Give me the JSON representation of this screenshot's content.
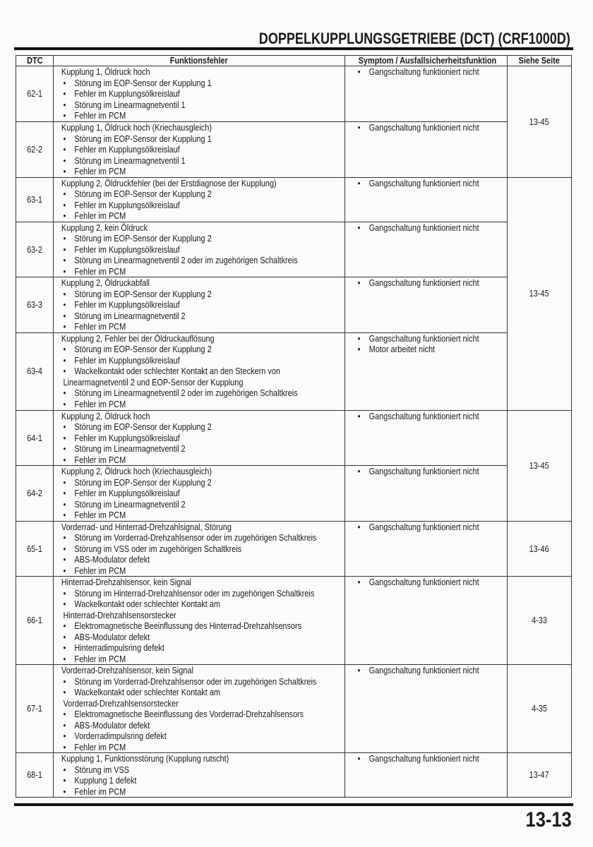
{
  "header": {
    "title": "DOPPELKUPPLUNGSGETRIEBE (DCT) (CRF1000D)"
  },
  "table": {
    "columns": [
      "DTC",
      "Funktionsfehler",
      "Symptom / Ausfallsicherheitsfunktion",
      "Siehe Seite"
    ],
    "rows": [
      {
        "dtc": "62-1",
        "title": "Kupplung 1, Öldruck hoch",
        "causes": [
          "Störung im EOP-Sensor der Kupplung 1",
          "Fehler im Kupplungsölkreislauf",
          "Störung im Linearmagnetventil 1",
          "Fehler im PCM"
        ],
        "symptoms": [
          "Gangschaltung funktioniert nicht"
        ],
        "page": "13-45",
        "page_span": 2
      },
      {
        "dtc": "62-2",
        "title": "Kupplung 1, Öldruck hoch (Kriechausgleich)",
        "causes": [
          "Störung im EOP-Sensor der Kupplung 1",
          "Fehler im Kupplungsölkreislauf",
          "Störung im Linearmagnetventil 1",
          "Fehler im PCM"
        ],
        "symptoms": [
          "Gangschaltung funktioniert nicht"
        ]
      },
      {
        "dtc": "63-1",
        "title": "Kupplung 2, Öldruckfehler (bei der Erstdiagnose der Kupplung)",
        "causes": [
          "Störung im EOP-Sensor der Kupplung 2",
          "Fehler im Kupplungsölkreislauf",
          "Fehler im PCM"
        ],
        "symptoms": [
          "Gangschaltung funktioniert nicht"
        ],
        "page": "13-45",
        "page_span": 4
      },
      {
        "dtc": "63-2",
        "title": "Kupplung 2, kein Öldruck",
        "causes": [
          "Störung im EOP-Sensor der Kupplung 2",
          "Fehler im Kupplungsölkreislauf",
          "Störung im Linearmagnetventil 2 oder im zugehörigen Schaltkreis",
          "Fehler im PCM"
        ],
        "symptoms": [
          "Gangschaltung funktioniert nicht"
        ]
      },
      {
        "dtc": "63-3",
        "title": "Kupplung 2, Öldruckabfall",
        "causes": [
          "Störung im EOP-Sensor der Kupplung 2",
          "Fehler im Kupplungsölkreislauf",
          "Störung im Linearmagnetventil 2",
          "Fehler im PCM"
        ],
        "symptoms": [
          "Gangschaltung funktioniert nicht"
        ]
      },
      {
        "dtc": "63-4",
        "title": "Kupplung 2, Fehler bei der Öldruckauflösung",
        "causes": [
          "Störung im EOP-Sensor der Kupplung 2",
          "Fehler im Kupplungsölkreislauf",
          "Wackelkontakt oder schlechter Kontakt an den Steckern von\nLinearmagnetventil 2 und EOP-Sensor der Kupplung",
          "Störung im Linearmagnetventil 2 oder im zugehörigen Schaltkreis",
          "Fehler im PCM"
        ],
        "symptoms": [
          "Gangschaltung funktioniert nicht",
          "Motor arbeitet nicht"
        ]
      },
      {
        "dtc": "64-1",
        "title": "Kupplung 2, Öldruck hoch",
        "causes": [
          "Störung im EOP-Sensor der Kupplung 2",
          "Fehler im Kupplungsölkreislauf",
          "Störung im Linearmagnetventil 2",
          "Fehler im PCM"
        ],
        "symptoms": [
          "Gangschaltung funktioniert nicht"
        ],
        "page": "13-45",
        "page_span": 2
      },
      {
        "dtc": "64-2",
        "title": "Kupplung 2, Öldruck hoch (Kriechausgleich)",
        "causes": [
          "Störung im EOP-Sensor der Kupplung 2",
          "Fehler im Kupplungsölkreislauf",
          "Störung im Linearmagnetventil 2",
          "Fehler im PCM"
        ],
        "symptoms": [
          "Gangschaltung funktioniert nicht"
        ]
      },
      {
        "dtc": "65-1",
        "title": "Vorderrad- und Hinterrad-Drehzahlsignal, Störung",
        "causes": [
          "Störung im Vorderrad-Drehzahlsensor oder im zugehörigen Schaltkreis",
          "Störung im VSS oder im zugehörigen Schaltkreis",
          "ABS-Modulator defekt",
          "Fehler im PCM"
        ],
        "symptoms": [
          "Gangschaltung funktioniert nicht"
        ],
        "page": "13-46",
        "page_span": 1
      },
      {
        "dtc": "66-1",
        "title": "Hinterrad-Drehzahlsensor, kein Signal",
        "causes": [
          "Störung im Hinterrad-Drehzahlsensor oder im zugehörigen Schaltkreis",
          "Wackelkontakt oder schlechter Kontakt am\nHinterrad-Drehzahlsensorstecker",
          "Elektromagnetische Beeinflussung des Hinterrad-Drehzahlsensors",
          "ABS-Modulator defekt",
          "Hinterradimpulsring defekt",
          "Fehler im PCM"
        ],
        "symptoms": [
          "Gangschaltung funktioniert nicht"
        ],
        "page": "4-33",
        "page_span": 1
      },
      {
        "dtc": "67-1",
        "title": "Vorderrad-Drehzahlsensor, kein Signal",
        "causes": [
          "Störung im Vorderrad-Drehzahlsensor oder im zugehörigen Schaltkreis",
          "Wackelkontakt oder schlechter Kontakt am\nVorderrad-Drehzahlsensorstecker",
          "Elektromagnetische Beeinflussung des Vorderrad-Drehzahlsensors",
          "ABS-Modulator defekt",
          "Vorderradimpulsring defekt",
          "Fehler im PCM"
        ],
        "symptoms": [
          "Gangschaltung funktioniert nicht"
        ],
        "page": "4-35",
        "page_span": 1
      },
      {
        "dtc": "68-1",
        "title": "Kupplung 1, Funktionsstörung (Kupplung rutscht)",
        "causes": [
          "Störung im VSS",
          "Kupplung 1 defekt",
          "Fehler im PCM"
        ],
        "symptoms": [
          "Gangschaltung funktioniert nicht"
        ],
        "page": "13-47",
        "page_span": 1
      }
    ]
  },
  "footer": {
    "page_number": "13-13"
  }
}
